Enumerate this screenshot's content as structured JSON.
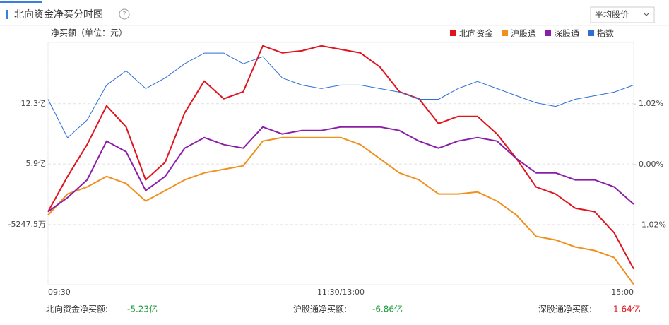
{
  "header": {
    "title": "北向资金净买分时图",
    "help": "?",
    "dropdown": "平均股价"
  },
  "chart_data": {
    "type": "line",
    "y_label": "净买额（单位：元）",
    "x": [
      0,
      8,
      16,
      24,
      32,
      40,
      48,
      56,
      64,
      72,
      80,
      88,
      96,
      104,
      112,
      120,
      128,
      136,
      144,
      152,
      160,
      168,
      176,
      184,
      192,
      200,
      208,
      216,
      224,
      232,
      240
    ],
    "xlim": [
      0,
      240
    ],
    "xticks": [
      {
        "value": 0,
        "label": "09:30"
      },
      {
        "value": 120,
        "label": "11:30/13:00"
      },
      {
        "value": 240,
        "label": "15:00"
      }
    ],
    "ylim": [
      -6.9,
      18.8
    ],
    "yticks": [
      {
        "value": 12.3,
        "label": "12.3亿"
      },
      {
        "value": 5.9,
        "label": "5.9亿"
      },
      {
        "value": -0.52475,
        "label": "-5247.5万"
      }
    ],
    "y2lim": [
      -2.03,
      2.06
    ],
    "y2ticks": [
      {
        "value": 1.02,
        "label": "1.02%"
      },
      {
        "value": 0,
        "label": "0.00%"
      },
      {
        "value": -1.02,
        "label": "-1.02%"
      }
    ],
    "grid": true,
    "legend": "top-right",
    "series": [
      {
        "name": "北向资金",
        "color": "#e0141e",
        "values": [
          0.85,
          4.59,
          7.96,
          12.08,
          9.83,
          4.22,
          6.09,
          11.33,
          14.7,
          12.82,
          13.57,
          18.44,
          17.69,
          17.91,
          18.44,
          18.06,
          17.69,
          16.19,
          13.57,
          12.82,
          10.2,
          10.95,
          10.95,
          9.08,
          6.46,
          3.47,
          2.72,
          1.22,
          0.85,
          -1.4,
          -5.23
        ]
      },
      {
        "name": "沪股通",
        "color": "#f0901e",
        "values": [
          0.47,
          2.72,
          3.47,
          4.59,
          3.84,
          1.97,
          3.09,
          4.22,
          4.96,
          5.34,
          5.71,
          8.33,
          8.71,
          8.71,
          8.71,
          8.71,
          7.96,
          6.46,
          4.96,
          4.22,
          2.72,
          2.72,
          2.94,
          1.97,
          0.47,
          -1.77,
          -2.15,
          -2.89,
          -3.27,
          -4.02,
          -6.86
        ]
      },
      {
        "name": "深股通",
        "color": "#8b1ea8",
        "values": [
          0.85,
          2.34,
          4.22,
          8.33,
          7.21,
          3.09,
          4.59,
          7.58,
          8.71,
          7.96,
          7.58,
          9.83,
          9.08,
          9.46,
          9.46,
          9.83,
          9.83,
          9.83,
          9.46,
          8.33,
          7.58,
          8.33,
          8.71,
          8.33,
          6.46,
          4.96,
          4.96,
          4.22,
          4.22,
          3.47,
          1.64
        ]
      },
      {
        "name": "指数",
        "color": "#2d6fd6",
        "axis": "y2",
        "values": [
          1.1,
          0.45,
          0.75,
          1.34,
          1.58,
          1.28,
          1.46,
          1.7,
          1.88,
          1.88,
          1.7,
          1.82,
          1.46,
          1.34,
          1.28,
          1.34,
          1.34,
          1.28,
          1.22,
          1.1,
          1.1,
          1.28,
          1.4,
          1.28,
          1.16,
          1.04,
          0.98,
          1.1,
          1.16,
          1.22,
          1.34
        ]
      }
    ]
  },
  "summary": [
    {
      "label": "北向资金净买额:",
      "value": "-5.23亿"
    },
    {
      "label": "沪股通净买额:",
      "value": "-6.86亿"
    },
    {
      "label": "深股通净买额:",
      "value": "1.64亿"
    }
  ]
}
